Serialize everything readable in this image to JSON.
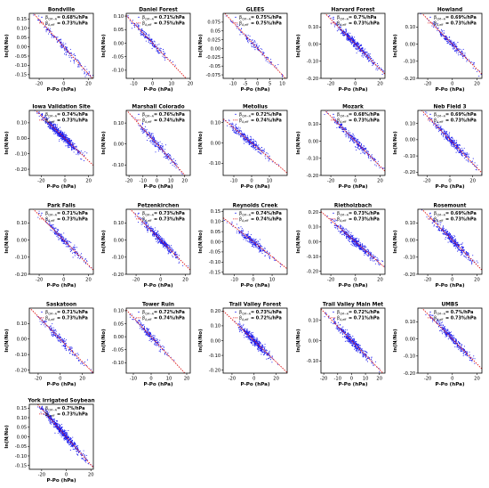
{
  "figure": {
    "xlabel": "P-Po (hPa)",
    "ylabel": "ln(N/No)",
    "beta_label_1": "β_{CM-A}",
    "beta_label_2": "β_{A,eff}"
  },
  "colors": {
    "points": "#1a1aee",
    "fit_line": "#e02020",
    "frame": "#000000"
  },
  "chart_data": [
    {
      "type": "scatter",
      "title": "Bondville",
      "xlabel": "P-Po (hPa)",
      "ylabel": "ln(N/No)",
      "xlim": [
        -28,
        24
      ],
      "ylim": [
        -0.17,
        0.18
      ],
      "xticks": [
        -20,
        0,
        20
      ],
      "yticks": [
        -0.15,
        -0.1,
        -0.05,
        0,
        0.05,
        0.1,
        0.15
      ],
      "annotations": [
        "= 0.68%/hPa",
        "= 0.73%/hPa"
      ],
      "slope": -0.0073,
      "x_center": 0,
      "x_spread": 12,
      "n_points": 180
    },
    {
      "type": "scatter",
      "title": "Daniel Forest",
      "xlabel": "P-Po (hPa)",
      "ylabel": "ln(N/No)",
      "xlim": [
        -14,
        20
      ],
      "ylim": [
        -0.13,
        0.11
      ],
      "xticks": [
        -10,
        0,
        10,
        20
      ],
      "yticks": [
        -0.1,
        -0.05,
        0,
        0.05,
        0.1
      ],
      "annotations": [
        "= 0.71%/hPa",
        "= 0.75%/hPa"
      ],
      "slope": -0.0073,
      "x_center": -2,
      "x_spread": 5,
      "n_points": 180
    },
    {
      "type": "scatter",
      "title": "GLEES",
      "xlabel": "P-Po (hPa)",
      "ylabel": "ln(N/No)",
      "xlim": [
        -14,
        12
      ],
      "ylim": [
        -0.085,
        0.1
      ],
      "xticks": [
        -10,
        -5,
        0,
        5,
        10
      ],
      "yticks": [
        -0.075,
        -0.05,
        -0.025,
        0,
        0.025,
        0.05,
        0.075
      ],
      "annotations": [
        "= 0.75%/hPa",
        "= 0.75%/hPa"
      ],
      "slope": -0.0075,
      "x_center": -1,
      "x_spread": 5,
      "n_points": 120
    },
    {
      "type": "scatter",
      "title": "Harvard Forest",
      "xlabel": "P-Po (hPa)",
      "ylabel": "ln(N/No)",
      "xlim": [
        -28,
        24
      ],
      "ylim": [
        -0.2,
        0.18
      ],
      "xticks": [
        -20,
        0,
        20
      ],
      "yticks": [
        -0.2,
        -0.1,
        0,
        0.1
      ],
      "annotations": [
        "= 0.7%/hPa",
        "= 0.73%/hPa"
      ],
      "slope": -0.0073,
      "x_center": 0,
      "x_spread": 9,
      "n_points": 420
    },
    {
      "type": "scatter",
      "title": "Howland",
      "xlabel": "P-Po (hPa)",
      "ylabel": "ln(N/No)",
      "xlim": [
        -28,
        24
      ],
      "ylim": [
        -0.2,
        0.18
      ],
      "xticks": [
        -20,
        0,
        20
      ],
      "yticks": [
        -0.2,
        -0.1,
        0,
        0.1
      ],
      "annotations": [
        "= 0.69%/hPa",
        "= 0.73%/hPa"
      ],
      "slope": -0.0073,
      "x_center": 0,
      "x_spread": 9,
      "n_points": 220
    },
    {
      "type": "scatter",
      "title": "Iowa Validation Site",
      "xlabel": "P-Po (hPa)",
      "ylabel": "ln(N/No)",
      "xlim": [
        -30,
        24
      ],
      "ylim": [
        -0.24,
        0.18
      ],
      "xticks": [
        -20,
        0,
        20
      ],
      "yticks": [
        -0.2,
        -0.1,
        0,
        0.1
      ],
      "annotations": [
        "= 0.74%/hPa",
        "= 0.73%/hPa"
      ],
      "slope": -0.0073,
      "x_center": -4,
      "x_spread": 8,
      "n_points": 600
    },
    {
      "type": "scatter",
      "title": "Marshall Colorado",
      "xlabel": "P-Po (hPa)",
      "ylabel": "ln(N/No)",
      "xlim": [
        -22,
        24
      ],
      "ylim": [
        -0.15,
        0.16
      ],
      "xticks": [
        -20,
        -10,
        0,
        10,
        20
      ],
      "yticks": [
        -0.1,
        0,
        0.1
      ],
      "annotations": [
        "= 0.76%/hPa",
        "= 0.74%/hPa"
      ],
      "slope": -0.0074,
      "x_center": 0,
      "x_spread": 7,
      "n_points": 240
    },
    {
      "type": "scatter",
      "title": "Metolius",
      "xlabel": "P-Po (hPa)",
      "ylabel": "ln(N/No)",
      "xlim": [
        -16,
        20
      ],
      "ylim": [
        -0.16,
        0.16
      ],
      "xticks": [
        -10,
        0,
        10
      ],
      "yticks": [
        -0.1,
        0,
        0.1
      ],
      "annotations": [
        "= 0.72%/hPa",
        "= 0.74%/hPa"
      ],
      "slope": -0.0074,
      "x_center": -2,
      "x_spread": 6,
      "n_points": 300
    },
    {
      "type": "scatter",
      "title": "Mozark",
      "xlabel": "P-Po (hPa)",
      "ylabel": "ln(N/No)",
      "xlim": [
        -28,
        24
      ],
      "ylim": [
        -0.2,
        0.18
      ],
      "xticks": [
        -20,
        0,
        20
      ],
      "yticks": [
        -0.2,
        -0.1,
        0,
        0.1
      ],
      "annotations": [
        "= 0.68%/hPa",
        "= 0.73%/hPa"
      ],
      "slope": -0.0073,
      "x_center": 0,
      "x_spread": 9,
      "n_points": 300
    },
    {
      "type": "scatter",
      "title": "Neb Field 3",
      "xlabel": "P-Po (hPa)",
      "ylabel": "ln(N/No)",
      "xlim": [
        -28,
        28
      ],
      "ylim": [
        -0.22,
        0.18
      ],
      "xticks": [
        -20,
        0,
        20
      ],
      "yticks": [
        -0.2,
        -0.1,
        0,
        0.1
      ],
      "annotations": [
        "= 0.69%/hPa",
        "= 0.73%/hPa"
      ],
      "slope": -0.0073,
      "x_center": 2,
      "x_spread": 9,
      "n_points": 320
    },
    {
      "type": "scatter",
      "title": "Park Falls",
      "xlabel": "P-Po (hPa)",
      "ylabel": "ln(N/No)",
      "xlim": [
        -28,
        24
      ],
      "ylim": [
        -0.2,
        0.18
      ],
      "xticks": [
        -20,
        0,
        20
      ],
      "yticks": [
        -0.2,
        -0.1,
        0,
        0.1
      ],
      "annotations": [
        "= 0.71%/hPa",
        "= 0.73%/hPa"
      ],
      "slope": -0.0073,
      "x_center": 0,
      "x_spread": 8,
      "n_points": 220
    },
    {
      "type": "scatter",
      "title": "Petzenkirchen",
      "xlabel": "P-Po (hPa)",
      "ylabel": "ln(N/No)",
      "xlim": [
        -28,
        24
      ],
      "ylim": [
        -0.2,
        0.18
      ],
      "xticks": [
        -20,
        0,
        20
      ],
      "yticks": [
        -0.2,
        -0.1,
        0,
        0.1
      ],
      "annotations": [
        "= 0.73%/hPa",
        "= 0.73%/hPa"
      ],
      "slope": -0.0073,
      "x_center": 0,
      "x_spread": 8,
      "n_points": 360
    },
    {
      "type": "scatter",
      "title": "Reynolds Creek",
      "xlabel": "P-Po (hPa)",
      "ylabel": "ln(N/No)",
      "xlim": [
        -16,
        18
      ],
      "ylim": [
        -0.16,
        0.16
      ],
      "xticks": [
        -10,
        0,
        10
      ],
      "yticks": [
        -0.15,
        -0.1,
        -0.05,
        0,
        0.05,
        0.1,
        0.15
      ],
      "annotations": [
        "= 0.74%/hPa",
        "= 0.74%/hPa"
      ],
      "slope": -0.0074,
      "x_center": 0,
      "x_spread": 5,
      "n_points": 260
    },
    {
      "type": "scatter",
      "title": "Rietholzbach",
      "xlabel": "P-Po (hPa)",
      "ylabel": "ln(N/No)",
      "xlim": [
        -28,
        24
      ],
      "ylim": [
        -0.22,
        0.22
      ],
      "xticks": [
        -20,
        0,
        20
      ],
      "yticks": [
        -0.2,
        -0.1,
        0,
        0.1,
        0.2
      ],
      "annotations": [
        "= 0.73%/hPa",
        "= 0.73%/hPa"
      ],
      "slope": -0.0073,
      "x_center": 0,
      "x_spread": 9,
      "n_points": 420
    },
    {
      "type": "scatter",
      "title": "Rosemount",
      "xlabel": "P-Po (hPa)",
      "ylabel": "ln(N/No)",
      "xlim": [
        -28,
        24
      ],
      "ylim": [
        -0.2,
        0.18
      ],
      "xticks": [
        -20,
        0,
        20
      ],
      "yticks": [
        -0.2,
        -0.1,
        0,
        0.1
      ],
      "annotations": [
        "= 0.69%/hPa",
        "= 0.73%/hPa"
      ],
      "slope": -0.0073,
      "x_center": 0,
      "x_spread": 9,
      "n_points": 340
    },
    {
      "type": "scatter",
      "title": "Saskatoon",
      "xlabel": "P-Po (hPa)",
      "ylabel": "ln(N/No)",
      "xlim": [
        -28,
        30
      ],
      "ylim": [
        -0.22,
        0.2
      ],
      "xticks": [
        -20,
        0,
        20
      ],
      "yticks": [
        -0.2,
        -0.1,
        0,
        0.1
      ],
      "annotations": [
        "= 0.71%/hPa",
        "= 0.73%/hPa"
      ],
      "slope": -0.0073,
      "x_center": 0,
      "x_spread": 10,
      "n_points": 200
    },
    {
      "type": "scatter",
      "title": "Tower Ruin",
      "xlabel": "P-Po (hPa)",
      "ylabel": "ln(N/No)",
      "xlim": [
        -14,
        22
      ],
      "ylim": [
        -0.14,
        0.11
      ],
      "xticks": [
        -10,
        0,
        10,
        20
      ],
      "yticks": [
        -0.1,
        -0.05,
        0,
        0.05,
        0.1
      ],
      "annotations": [
        "= 0.72%/hPa",
        "= 0.74%/hPa"
      ],
      "slope": -0.0074,
      "x_center": -1,
      "x_spread": 5,
      "n_points": 200
    },
    {
      "type": "scatter",
      "title": "Trail Valley Forest",
      "xlabel": "P-Po (hPa)",
      "ylabel": "ln(N/No)",
      "xlim": [
        -28,
        30
      ],
      "ylim": [
        -0.22,
        0.22
      ],
      "xticks": [
        -20,
        0,
        20
      ],
      "yticks": [
        -0.2,
        -0.1,
        0,
        0.1,
        0.2
      ],
      "annotations": [
        "= 0.73%/hPa",
        "= 0.72%/hPa"
      ],
      "slope": -0.0072,
      "x_center": 0,
      "x_spread": 7,
      "n_points": 440
    },
    {
      "type": "scatter",
      "title": "Trail Valley Main Met",
      "xlabel": "P-Po (hPa)",
      "ylabel": "ln(N/No)",
      "xlim": [
        -22,
        24
      ],
      "ylim": [
        -0.16,
        0.16
      ],
      "xticks": [
        -20,
        -10,
        0,
        10,
        20
      ],
      "yticks": [
        -0.1,
        0,
        0.1
      ],
      "annotations": [
        "= 0.72%/hPa",
        "= 0.71%/hPa"
      ],
      "slope": -0.0071,
      "x_center": 0,
      "x_spread": 7,
      "n_points": 380
    },
    {
      "type": "scatter",
      "title": "UMBS",
      "xlabel": "P-Po (hPa)",
      "ylabel": "ln(N/No)",
      "xlim": [
        -28,
        24
      ],
      "ylim": [
        -0.2,
        0.18
      ],
      "xticks": [
        -20,
        0,
        20
      ],
      "yticks": [
        -0.2,
        -0.1,
        0,
        0.1
      ],
      "annotations": [
        "= 0.7%/hPa",
        "= 0.73%/hPa"
      ],
      "slope": -0.0073,
      "x_center": 0,
      "x_spread": 9,
      "n_points": 300
    },
    {
      "type": "scatter",
      "title": "York Irrigated Soybean",
      "xlabel": "P-Po (hPa)",
      "ylabel": "ln(N/No)",
      "xlim": [
        -30,
        22
      ],
      "ylim": [
        -0.17,
        0.17
      ],
      "xticks": [
        -20,
        0,
        20
      ],
      "yticks": [
        -0.15,
        -0.1,
        -0.05,
        0,
        0.05,
        0.1,
        0.15
      ],
      "annotations": [
        "= 0.7%/hPa",
        "= 0.73%/hPa"
      ],
      "slope": -0.0073,
      "x_center": -3,
      "x_spread": 9,
      "n_points": 600
    }
  ]
}
